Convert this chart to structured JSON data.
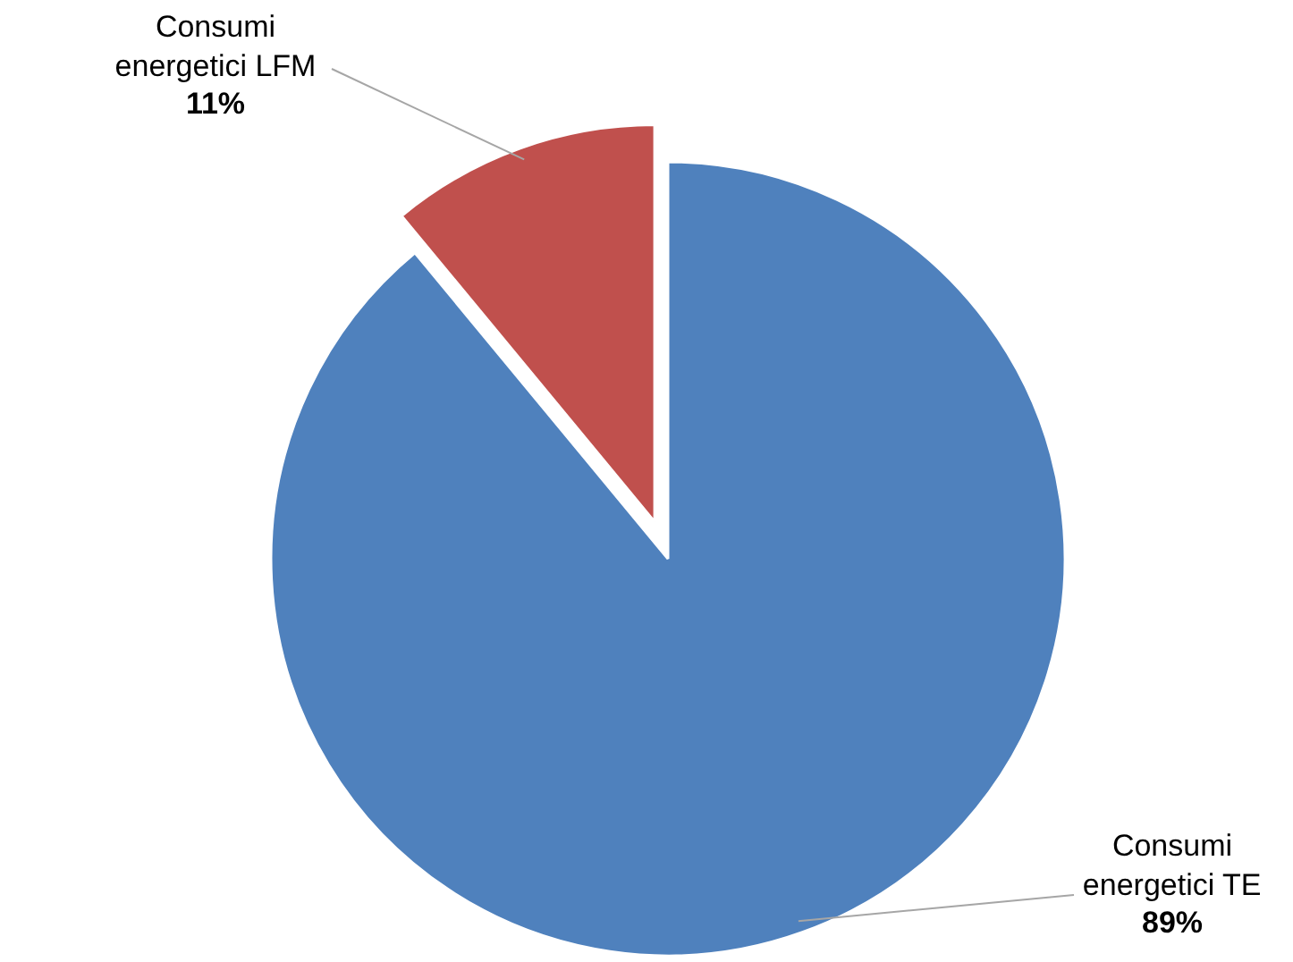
{
  "chart_data": {
    "type": "pie",
    "categories": [
      "Consumi energetici LFM",
      "Consumi energetici TE"
    ],
    "values": [
      11,
      89
    ],
    "colors": [
      "#c0504d",
      "#4f81bd"
    ],
    "value_labels": [
      "11%",
      "89%"
    ]
  }
}
